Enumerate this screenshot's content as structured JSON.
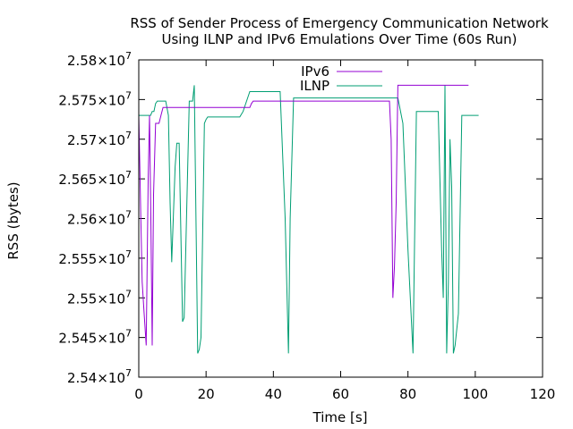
{
  "chart_data": {
    "type": "line",
    "title_line1": "RSS of Sender Process of Emergency Communication Network",
    "title_line2": "Using ILNP and IPv6 Emulations Over Time (60s Run)",
    "xlabel": "Time [s]",
    "ylabel": "RSS (bytes)",
    "xlim": [
      0,
      120
    ],
    "ylim": [
      25400000,
      25800000
    ],
    "x_ticks": [
      0,
      20,
      40,
      60,
      80,
      100,
      120
    ],
    "x_tick_labels": [
      "0",
      "20",
      "40",
      "60",
      "80",
      "100",
      "120"
    ],
    "y_ticks": [
      25400000,
      25450000,
      25500000,
      25550000,
      25600000,
      25650000,
      25700000,
      25750000,
      25800000
    ],
    "y_tick_mantissas": [
      "2.54",
      "2.545",
      "2.55",
      "2.555",
      "2.56",
      "2.565",
      "2.57",
      "2.575",
      "2.58"
    ],
    "y_tick_multiplier": "×10",
    "y_tick_exponent": "7",
    "grid": false,
    "legend_position": "top-center",
    "series": [
      {
        "name": "IPv6",
        "color": "#9400d3",
        "x": [
          0,
          0.3,
          0.6,
          1.0,
          1.6,
          2.2,
          2.8,
          3.2,
          3.6,
          4.0,
          4.4,
          5.0,
          6.0,
          6.6,
          7.2,
          8.0,
          15,
          25,
          33,
          33.5,
          34,
          40,
          50,
          60,
          70,
          74.5,
          75,
          75.5,
          76,
          76.5,
          77,
          80,
          90,
          98
        ],
        "y": [
          25730000,
          25670000,
          25600000,
          25520000,
          25480000,
          25440000,
          25650000,
          25730000,
          25600000,
          25440000,
          25630000,
          25720000,
          25720000,
          25730000,
          25740000,
          25740000,
          25740000,
          25740000,
          25740000,
          25745000,
          25748000,
          25748000,
          25748000,
          25748000,
          25748000,
          25748000,
          25700000,
          25500000,
          25540000,
          25620000,
          25768000,
          25768000,
          25768000,
          25768000
        ]
      },
      {
        "name": "ILNP",
        "color": "#009e73",
        "x": [
          0,
          0.8,
          1.3,
          2.0,
          3.5,
          4.0,
          4.5,
          5.0,
          5.5,
          6.0,
          7.0,
          8.0,
          8.8,
          9.3,
          9.8,
          10.3,
          10.8,
          11.3,
          12.0,
          13.0,
          13.5,
          15.0,
          16.0,
          16.5,
          17.5,
          18.0,
          18.5,
          19.5,
          20.0,
          20.5,
          22.0,
          26.0,
          30.0,
          31.0,
          33.0,
          38.0,
          42.0,
          43.5,
          44.5,
          45.0,
          46.0,
          56.0,
          60.0,
          72.0,
          75.0,
          77.0,
          78.5,
          80.0,
          81.5,
          82.5,
          84.0,
          85.5,
          89.0,
          90.0,
          90.5,
          91.0,
          91.5,
          92.0,
          92.5,
          93.0,
          93.5,
          94.0,
          95.0,
          96.0,
          97.0,
          98.0,
          101.0
        ],
        "y": [
          25730000,
          25730000,
          25730000,
          25730000,
          25730000,
          25735000,
          25735000,
          25745000,
          25748000,
          25748000,
          25748000,
          25748000,
          25730000,
          25620000,
          25545000,
          25605000,
          25665000,
          25695000,
          25695000,
          25470000,
          25475000,
          25748000,
          25748000,
          25768000,
          25430000,
          25435000,
          25450000,
          25720000,
          25725000,
          25728000,
          25728000,
          25728000,
          25728000,
          25735000,
          25760000,
          25760000,
          25760000,
          25600000,
          25430000,
          25600000,
          25752000,
          25752000,
          25752000,
          25752000,
          25752000,
          25752000,
          25720000,
          25560000,
          25430000,
          25735000,
          25735000,
          25735000,
          25735000,
          25560000,
          25500000,
          25768000,
          25430000,
          25520000,
          25700000,
          25640000,
          25430000,
          25440000,
          25480000,
          25730000,
          25730000,
          25730000,
          25730000
        ]
      }
    ]
  }
}
